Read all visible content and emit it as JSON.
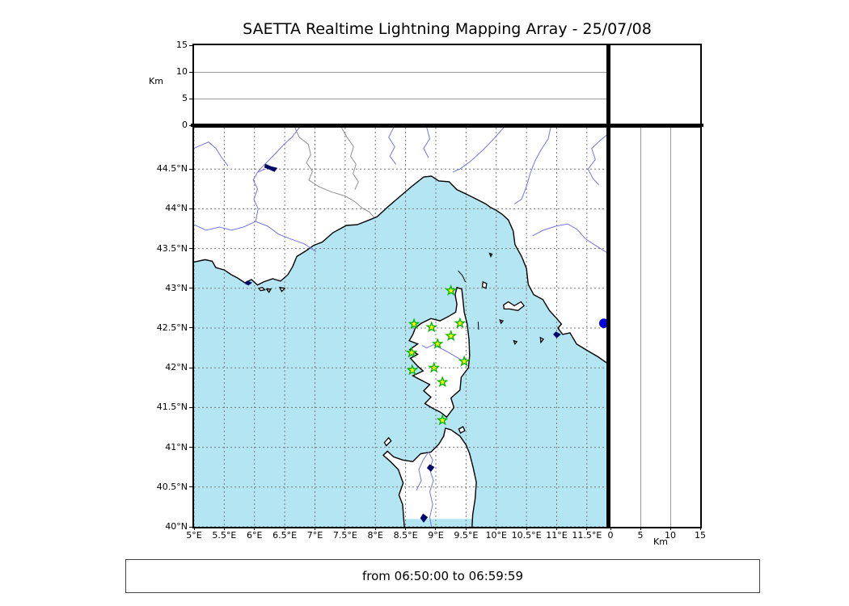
{
  "title": "SAETTA Realtime Lightning Mapping Array - 25/07/08",
  "footer": {
    "text": "from 06:50:00 to 06:59:59"
  },
  "colors": {
    "sea": "#b3e5f3",
    "land": "#ffffff",
    "coastline": "#000000",
    "river": "#7474e4",
    "country_border": "#909090",
    "grid": "#787878",
    "lake": "#000a66",
    "station_fill": "#ffff00",
    "station_stroke": "#00b400",
    "detection": "#0000e0"
  },
  "chart_data": {
    "type": "scatter",
    "title": "SAETTA Realtime Lightning Mapping Array - 25/07/08",
    "time_window": "from 06:50:00 to 06:59:59",
    "map_panel": {
      "projection": "lon-lat map of Corsica / NW Mediterranean",
      "xlim": [
        5.0,
        11.85
      ],
      "ylim": [
        40.0,
        45.02
      ],
      "grid": true,
      "lon_ticks": {
        "values": [
          5,
          5.5,
          6,
          6.5,
          7,
          7.5,
          8,
          8.5,
          9,
          9.5,
          10,
          10.5,
          11,
          11.5
        ],
        "labels": [
          "5°E",
          "5.5°E",
          "6°E",
          "6.5°E",
          "7°E",
          "7.5°E",
          "8°E",
          "8.5°E",
          "9°E",
          "9.5°E",
          "10°E",
          "10.5°E",
          "11°E",
          "11.5°E"
        ]
      },
      "lat_ticks": {
        "values": [
          40,
          40.5,
          41,
          41.5,
          42,
          42.5,
          43,
          43.5,
          44,
          44.5
        ],
        "labels": [
          "40°N",
          "40.5°N",
          "41°N",
          "41.5°N",
          "42°N",
          "42.5°N",
          "43°N",
          "43.5°N",
          "44°N",
          "44.5°N"
        ]
      }
    },
    "top_panel": {
      "description": "altitude vs longitude",
      "ylabel": "Km",
      "ylim": [
        0,
        15
      ],
      "yticks": {
        "values": [
          0,
          5,
          10,
          15
        ],
        "labels": [
          "0",
          "5",
          "10",
          "15"
        ]
      },
      "gridlines": [
        5,
        10
      ],
      "points": []
    },
    "right_panel": {
      "description": "altitude vs latitude",
      "xlabel": "Km",
      "xlim": [
        0,
        15
      ],
      "xticks": {
        "values": [
          0,
          5,
          10,
          15
        ],
        "labels": [
          "0",
          "5",
          "10",
          "15"
        ]
      },
      "gridlines": [
        5,
        10
      ],
      "points": []
    },
    "stations": [
      {
        "lon": 9.25,
        "lat": 42.97
      },
      {
        "lon": 8.64,
        "lat": 42.55
      },
      {
        "lon": 8.93,
        "lat": 42.51
      },
      {
        "lon": 9.4,
        "lat": 42.56
      },
      {
        "lon": 9.25,
        "lat": 42.4
      },
      {
        "lon": 9.03,
        "lat": 42.3
      },
      {
        "lon": 8.6,
        "lat": 42.19
      },
      {
        "lon": 9.47,
        "lat": 42.08
      },
      {
        "lon": 8.97,
        "lat": 42.0
      },
      {
        "lon": 8.61,
        "lat": 41.97
      },
      {
        "lon": 9.11,
        "lat": 41.82
      },
      {
        "lon": 9.11,
        "lat": 41.34
      }
    ],
    "detections": [
      {
        "lon": 11.78,
        "lat": 42.56
      }
    ]
  }
}
